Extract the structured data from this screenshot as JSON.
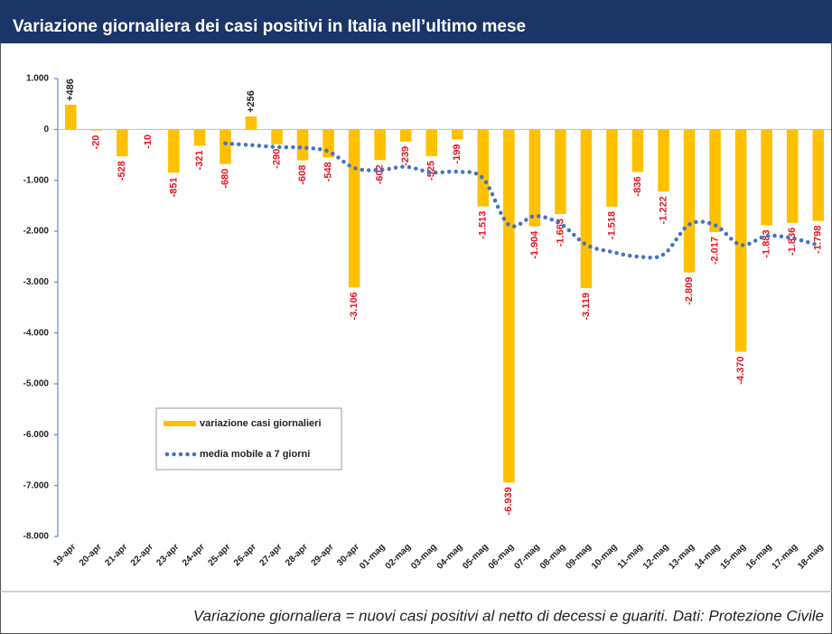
{
  "chart_data": {
    "type": "bar",
    "title": "Variazione giornaliera dei casi positivi in Italia nell’ultimo mese",
    "caption": "Variazione giornaliera = nuovi casi positivi al netto di decessi e guariti. Dati: Protezione Civile",
    "categories": [
      "19-apr",
      "20-apr",
      "21-apr",
      "22-apr",
      "23-apr",
      "24-apr",
      "25-apr",
      "26-apr",
      "27-apr",
      "28-apr",
      "29-apr",
      "30-apr",
      "01-mag",
      "02-mag",
      "03-mag",
      "04-mag",
      "05-mag",
      "06-mag",
      "07-mag",
      "08-mag",
      "09-mag",
      "10-mag",
      "11-mag",
      "12-mag",
      "13-mag",
      "14-mag",
      "15-mag",
      "16-mag",
      "17-mag",
      "18-mag"
    ],
    "series": [
      {
        "name": "variazione casi giornalieri",
        "type": "bar",
        "color": "#ffc000",
        "values": [
          486,
          -20,
          -528,
          -10,
          -851,
          -321,
          -680,
          256,
          -290,
          -608,
          -548,
          -3106,
          -602,
          -239,
          -525,
          -199,
          -1513,
          -6939,
          -1904,
          -1663,
          -3119,
          -1518,
          -836,
          -1222,
          -2809,
          -2017,
          -4370,
          -1883,
          -1836,
          -1798
        ],
        "value_labels": [
          "+486",
          "-20",
          "-528",
          "-10",
          "-851",
          "-321",
          "-680",
          "+256",
          "-290",
          "-608",
          "-548",
          "-3.106",
          "-602",
          "-239",
          "-525",
          "-199",
          "-1.513",
          "-6.939",
          "-1.904",
          "-1.663",
          "-3.119",
          "-1.518",
          "-836",
          "-1.222",
          "-2.809",
          "-2.017",
          "-4.370",
          "-1.883",
          "-1.836",
          "-1.798"
        ]
      },
      {
        "name": "media mobile a 7 giorni",
        "type": "line",
        "color": "#4472c4",
        "values": [
          null,
          null,
          null,
          null,
          null,
          null,
          -275,
          -308,
          -346,
          -358,
          -435,
          -757,
          -797,
          -734,
          -845,
          -832,
          -962,
          -1875,
          -1703,
          -1855,
          -2266,
          -2408,
          -2499,
          -2457,
          -1867,
          -1883,
          -2270,
          -2094,
          -2139,
          -2276
        ]
      }
    ],
    "ylim": [
      -8000,
      1000
    ],
    "yticks": [
      {
        "value": 1000,
        "label": "1.000"
      },
      0,
      {
        "value": -1000,
        "label": "-1.000"
      },
      {
        "value": -2000,
        "label": "-2.000"
      },
      {
        "value": -3000,
        "label": "-3.000"
      },
      {
        "value": -4000,
        "label": "-4.000"
      },
      {
        "value": -5000,
        "label": "-5.000"
      },
      {
        "value": -6000,
        "label": "-6.000"
      },
      {
        "value": -7000,
        "label": "-7.000"
      },
      {
        "value": -8000,
        "label": "-8.000"
      }
    ],
    "grid": false
  }
}
